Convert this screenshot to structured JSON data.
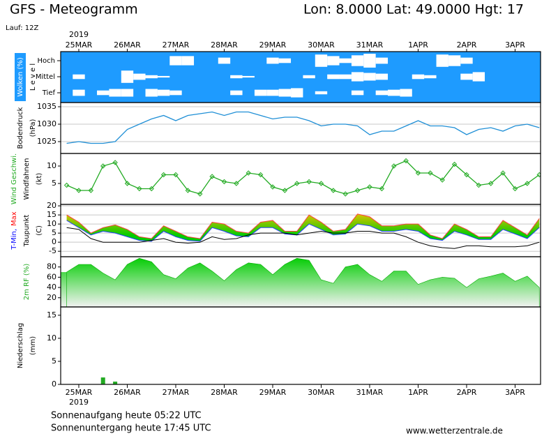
{
  "header": {
    "title": "GFS - Meteogramm",
    "location": "Lon: 8.0000 Lat: 49.0000 Hgt: 17",
    "run": "Lauf: 12Z"
  },
  "x_axis": {
    "year": "2019",
    "categories": [
      null,
      "25MAR",
      null,
      null,
      null,
      "26MAR",
      null,
      null,
      null,
      "27MAR",
      null,
      null,
      null,
      "28MAR",
      null,
      null,
      null,
      "29MAR",
      null,
      null,
      null,
      "30MAR",
      null,
      null,
      null,
      "31MAR",
      null,
      null,
      null,
      "1APR",
      null,
      null,
      null,
      "2APR",
      null,
      null,
      null,
      "3APR",
      null,
      null
    ]
  },
  "chart_data": [
    {
      "type": "cloud",
      "ylabel_lines": [
        [
          {
            "text": "Wolken (%)",
            "color": "#ffffff"
          }
        ],
        [
          {
            "text": "L e v e l",
            "color": "#000000"
          }
        ]
      ],
      "background": "#1e9bff",
      "color": "#ffffff",
      "series": [
        {
          "name": "Hoch",
          "values": [
            0,
            0,
            0,
            0,
            0,
            0,
            0,
            0,
            0,
            60,
            60,
            0,
            0,
            40,
            0,
            0,
            0,
            40,
            30,
            0,
            0,
            80,
            60,
            30,
            70,
            90,
            40,
            0,
            0,
            0,
            0,
            80,
            70,
            40,
            0,
            0,
            0,
            0,
            0,
            0
          ]
        },
        {
          "name": "Mittel",
          "values": [
            0,
            30,
            0,
            0,
            0,
            80,
            40,
            20,
            10,
            0,
            0,
            0,
            0,
            0,
            20,
            10,
            0,
            0,
            0,
            0,
            20,
            0,
            30,
            30,
            60,
            50,
            40,
            0,
            0,
            30,
            20,
            0,
            0,
            40,
            60,
            0,
            0,
            0,
            0,
            0
          ]
        },
        {
          "name": "Tief",
          "values": [
            0,
            40,
            0,
            30,
            50,
            50,
            0,
            50,
            40,
            30,
            0,
            0,
            0,
            0,
            30,
            0,
            40,
            40,
            50,
            60,
            0,
            20,
            0,
            0,
            30,
            0,
            30,
            40,
            50,
            0,
            0,
            0,
            0,
            0,
            0,
            0,
            0,
            0,
            0,
            0
          ]
        }
      ]
    },
    {
      "type": "line",
      "ylabel_lines": [
        [
          {
            "text": "Bodendruck",
            "color": "#000000"
          }
        ],
        [
          {
            "text": "(hPa)",
            "color": "#000000"
          }
        ]
      ],
      "color": "#1f8fd6",
      "ylim": [
        1021.6,
        1036.2
      ],
      "yticks": [
        1025,
        1030,
        1035
      ],
      "grid": true,
      "values": [
        1024.5,
        1025,
        1024.5,
        1024.5,
        1025,
        1028.5,
        1030,
        1031.5,
        1032.5,
        1031,
        1032.5,
        1033,
        1033.5,
        1032.5,
        1033.5,
        1033.5,
        1032.5,
        1031.5,
        1032,
        1032,
        1031,
        1029.5,
        1030,
        1030,
        1029.5,
        1027,
        1028,
        1028,
        1029.5,
        1031,
        1029.5,
        1029.5,
        1029,
        1027,
        1028.5,
        1029,
        1028,
        1029.5,
        1030,
        1029
      ]
    },
    {
      "type": "line",
      "markers": true,
      "ylabel_lines": [
        [
          {
            "text": "Wind Geschwi.",
            "color": "#22aa22"
          }
        ],
        [
          {
            "text": "Windfahnen",
            "color": "#000000"
          }
        ],
        [
          {
            "text": "(kt)",
            "color": "#000000"
          }
        ]
      ],
      "color": "#22aa22",
      "ylim": [
        -1,
        13.6
      ],
      "yticks": [
        5,
        10
      ],
      "grid": false,
      "values": [
        4.5,
        3,
        3,
        10,
        11,
        5,
        3.5,
        3.5,
        7.5,
        7.5,
        3,
        2,
        7,
        5.5,
        5,
        8,
        7.5,
        4,
        3,
        5,
        5.5,
        5,
        3,
        2,
        3,
        4,
        3.5,
        10,
        11.5,
        8,
        8,
        6,
        10.5,
        7.5,
        4.5,
        5,
        8,
        3.5,
        5,
        7.5
      ]
    },
    {
      "type": "temperature",
      "ylabel_lines": [
        [
          {
            "text": "T-Min,",
            "color": "#0000ff"
          },
          {
            "text": "Max",
            "color": "#ff0000"
          }
        ],
        [
          {
            "text": "Taupunkt",
            "color": "#000000"
          }
        ],
        [
          {
            "text": "(C)",
            "color": "#000000"
          }
        ]
      ],
      "ylim": [
        -8,
        20.8
      ],
      "yticks": [
        -5,
        0,
        5,
        10,
        15,
        20
      ],
      "grid": true,
      "fill_colors": [
        "#f2c200",
        "#00cc00"
      ],
      "series": [
        {
          "color": "#ff4040",
          "values": [
            15,
            11,
            5,
            8,
            9.5,
            7,
            3,
            2,
            9,
            6,
            3,
            2,
            11,
            10,
            6,
            5,
            11,
            12,
            6,
            6,
            15,
            11,
            6,
            7,
            15.5,
            14,
            9,
            9,
            10,
            10,
            4,
            2,
            10,
            7,
            3,
            3,
            12,
            8,
            4,
            13
          ]
        },
        {
          "color": "#2040ff",
          "values": [
            12,
            8,
            4,
            6,
            5,
            3,
            1,
            0.5,
            6,
            3,
            1,
            0.5,
            8,
            6,
            3.5,
            3,
            8,
            8,
            4.5,
            4,
            10,
            7,
            4,
            4.5,
            10,
            9,
            6,
            6,
            7,
            6,
            2,
            1,
            6,
            4,
            1.5,
            1.5,
            7,
            4.5,
            2,
            8
          ]
        },
        {
          "color": "#000000",
          "values": [
            8,
            7,
            2,
            0,
            0,
            0,
            0,
            1,
            2,
            0,
            -0.5,
            0,
            3,
            1.5,
            2,
            4,
            5,
            5,
            5,
            4,
            5,
            6,
            5,
            5,
            6,
            6,
            5,
            5,
            3,
            0,
            -2,
            -3,
            -3.5,
            -2,
            -2,
            -2.5,
            -2.5,
            -2.5,
            -2,
            0
          ]
        }
      ]
    },
    {
      "type": "area",
      "ylabel_lines": [
        [
          {
            "text": "2m RF (%)",
            "color": "#22aa22"
          }
        ]
      ],
      "color": "#00aa00",
      "fill_colors": [
        "#00cc00",
        "#f2f2f2"
      ],
      "ylim": [
        2,
        100
      ],
      "yticks": [
        20,
        40,
        60,
        80
      ],
      "grid": false,
      "values": [
        70,
        85,
        85,
        68,
        55,
        85,
        97,
        90,
        65,
        57,
        78,
        88,
        72,
        53,
        75,
        88,
        85,
        65,
        85,
        97,
        93,
        55,
        48,
        80,
        85,
        65,
        52,
        72,
        72,
        46,
        55,
        60,
        58,
        40,
        57,
        62,
        68,
        52,
        62,
        40
      ]
    },
    {
      "type": "bar",
      "ylabel_lines": [
        [
          {
            "text": "Niederschlag",
            "color": "#000000"
          }
        ],
        [
          {
            "text": "(mm)",
            "color": "#000000"
          }
        ]
      ],
      "color": "#22aa22",
      "ylim": [
        0,
        16.8
      ],
      "yticks": [
        0,
        5,
        10,
        15
      ],
      "grid": false,
      "values": [
        0,
        0,
        0,
        1.5,
        0.6,
        0,
        0,
        0,
        0,
        0,
        0,
        0,
        0,
        0,
        0,
        0,
        0,
        0,
        0,
        0,
        0,
        0,
        0,
        0,
        0,
        0,
        0,
        0,
        0,
        0,
        0,
        0,
        0,
        0,
        0,
        0,
        0,
        0,
        0,
        0
      ]
    }
  ],
  "footer": {
    "sunrise": "Sonnenaufgang heute 05:22 UTC",
    "sunset": "Sonnenuntergang heute 17:45 UTC",
    "source": "www.wetterzentrale.de"
  }
}
